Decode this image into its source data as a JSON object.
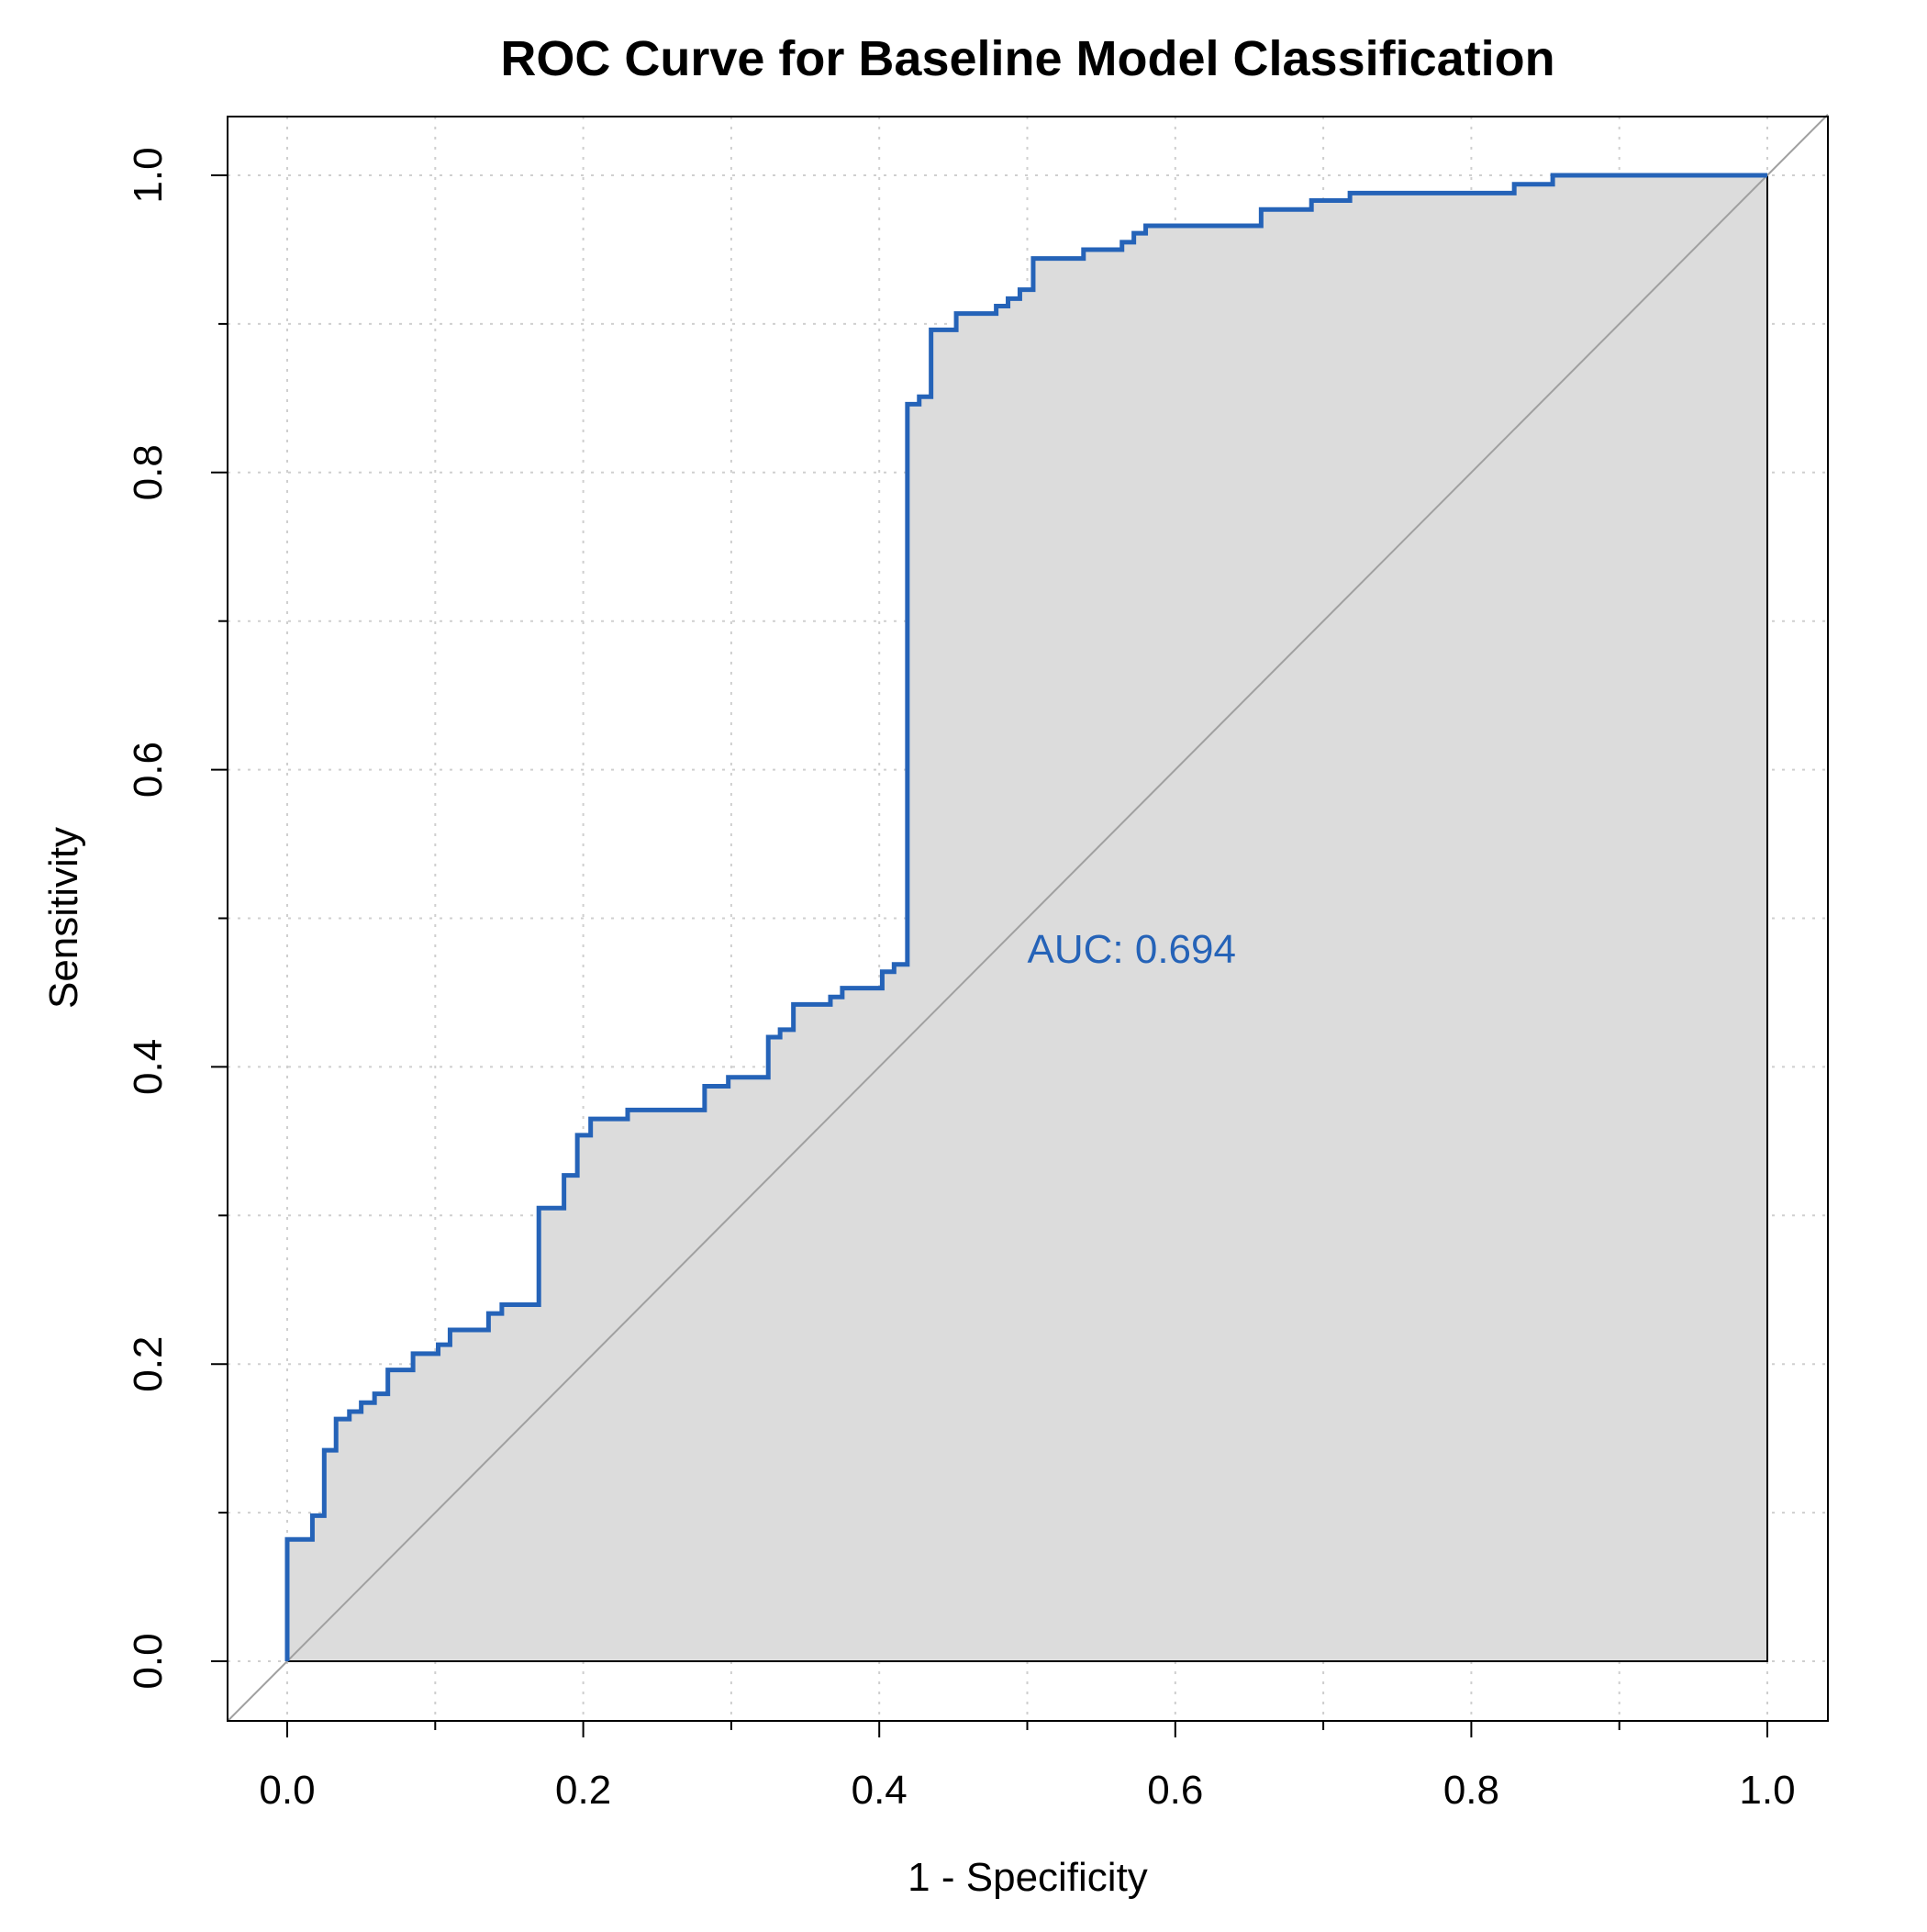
{
  "chart_data": {
    "type": "line",
    "title": "ROC Curve for Baseline Model Classification",
    "xlabel": "1 - Specificity",
    "ylabel": "Sensitivity",
    "xlim": [
      0,
      1
    ],
    "ylim": [
      0,
      1
    ],
    "x_ticks": [
      "0.0",
      "0.2",
      "0.4",
      "0.6",
      "0.8",
      "1.0"
    ],
    "y_ticks": [
      "0.0",
      "0.2",
      "0.4",
      "0.6",
      "0.8",
      "1.0"
    ],
    "grid": true,
    "grid_style": "dotted",
    "auc_text": "AUC: 0.694",
    "colors": {
      "curve": "#2563b8",
      "fill": "#dcdcdc",
      "diagonal": "#a0a0a0",
      "grid": "#cfcfcf",
      "auc_text": "#2563b8"
    },
    "series": [
      {
        "points": [
          [
            0.0,
            0.0
          ],
          [
            0.0,
            0.082
          ],
          [
            0.017,
            0.082
          ],
          [
            0.017,
            0.098
          ],
          [
            0.025,
            0.098
          ],
          [
            0.025,
            0.142
          ],
          [
            0.033,
            0.142
          ],
          [
            0.033,
            0.163
          ],
          [
            0.042,
            0.163
          ],
          [
            0.042,
            0.168
          ],
          [
            0.05,
            0.168
          ],
          [
            0.05,
            0.174
          ],
          [
            0.059,
            0.174
          ],
          [
            0.059,
            0.18
          ],
          [
            0.068,
            0.18
          ],
          [
            0.068,
            0.196
          ],
          [
            0.085,
            0.196
          ],
          [
            0.085,
            0.207
          ],
          [
            0.102,
            0.207
          ],
          [
            0.102,
            0.213
          ],
          [
            0.11,
            0.213
          ],
          [
            0.11,
            0.223
          ],
          [
            0.136,
            0.223
          ],
          [
            0.136,
            0.234
          ],
          [
            0.145,
            0.234
          ],
          [
            0.145,
            0.24
          ],
          [
            0.17,
            0.24
          ],
          [
            0.17,
            0.305
          ],
          [
            0.187,
            0.305
          ],
          [
            0.187,
            0.327
          ],
          [
            0.196,
            0.327
          ],
          [
            0.196,
            0.354
          ],
          [
            0.205,
            0.354
          ],
          [
            0.205,
            0.365
          ],
          [
            0.23,
            0.365
          ],
          [
            0.23,
            0.371
          ],
          [
            0.282,
            0.371
          ],
          [
            0.282,
            0.387
          ],
          [
            0.298,
            0.387
          ],
          [
            0.298,
            0.393
          ],
          [
            0.325,
            0.393
          ],
          [
            0.325,
            0.42
          ],
          [
            0.333,
            0.42
          ],
          [
            0.333,
            0.425
          ],
          [
            0.342,
            0.425
          ],
          [
            0.342,
            0.442
          ],
          [
            0.367,
            0.442
          ],
          [
            0.367,
            0.447
          ],
          [
            0.375,
            0.447
          ],
          [
            0.375,
            0.453
          ],
          [
            0.402,
            0.453
          ],
          [
            0.402,
            0.464
          ],
          [
            0.41,
            0.464
          ],
          [
            0.41,
            0.469
          ],
          [
            0.419,
            0.469
          ],
          [
            0.419,
            0.846
          ],
          [
            0.427,
            0.846
          ],
          [
            0.427,
            0.851
          ],
          [
            0.435,
            0.851
          ],
          [
            0.435,
            0.896
          ],
          [
            0.452,
            0.896
          ],
          [
            0.452,
            0.907
          ],
          [
            0.479,
            0.907
          ],
          [
            0.479,
            0.912
          ],
          [
            0.487,
            0.912
          ],
          [
            0.487,
            0.917
          ],
          [
            0.495,
            0.917
          ],
          [
            0.495,
            0.923
          ],
          [
            0.504,
            0.923
          ],
          [
            0.504,
            0.944
          ],
          [
            0.538,
            0.944
          ],
          [
            0.538,
            0.95
          ],
          [
            0.564,
            0.95
          ],
          [
            0.564,
            0.955
          ],
          [
            0.572,
            0.955
          ],
          [
            0.572,
            0.961
          ],
          [
            0.58,
            0.961
          ],
          [
            0.58,
            0.966
          ],
          [
            0.658,
            0.966
          ],
          [
            0.658,
            0.977
          ],
          [
            0.692,
            0.977
          ],
          [
            0.692,
            0.983
          ],
          [
            0.718,
            0.983
          ],
          [
            0.718,
            0.988
          ],
          [
            0.829,
            0.988
          ],
          [
            0.829,
            0.994
          ],
          [
            0.855,
            0.994
          ],
          [
            0.855,
            1.0
          ],
          [
            1.0,
            1.0
          ]
        ]
      }
    ]
  }
}
